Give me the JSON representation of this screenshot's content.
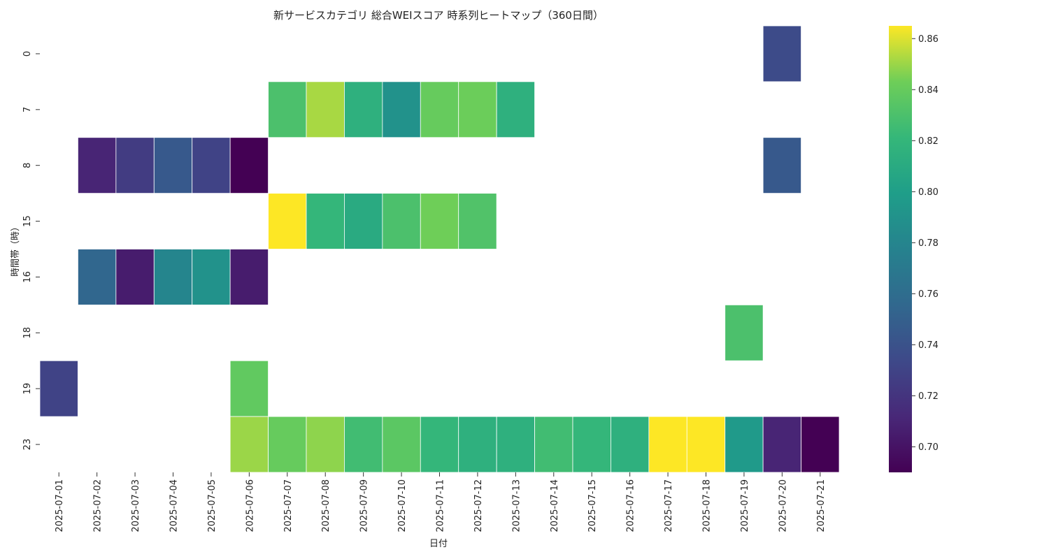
{
  "chart_data": {
    "type": "heatmap",
    "title": "新サービスカテゴリ 総合WEIスコア 時系列ヒートマップ（360日間）",
    "xlabel": "日付",
    "ylabel": "時間帯（時）",
    "x_categories": [
      "2025-07-01",
      "2025-07-02",
      "2025-07-03",
      "2025-07-04",
      "2025-07-05",
      "2025-07-06",
      "2025-07-07",
      "2025-07-08",
      "2025-07-09",
      "2025-07-10",
      "2025-07-11",
      "2025-07-12",
      "2025-07-13",
      "2025-07-14",
      "2025-07-15",
      "2025-07-16",
      "2025-07-17",
      "2025-07-18",
      "2025-07-19",
      "2025-07-20",
      "2025-07-21"
    ],
    "y_categories": [
      "0",
      "7",
      "8",
      "15",
      "16",
      "18",
      "19",
      "23"
    ],
    "values": [
      [
        null,
        null,
        null,
        null,
        null,
        null,
        null,
        null,
        null,
        null,
        null,
        null,
        null,
        null,
        null,
        null,
        null,
        null,
        null,
        0.735,
        null
      ],
      [
        null,
        null,
        null,
        null,
        null,
        null,
        0.83,
        0.852,
        0.815,
        0.79,
        0.84,
        0.842,
        0.815,
        null,
        null,
        null,
        null,
        null,
        null,
        null,
        null
      ],
      [
        null,
        0.71,
        0.725,
        0.745,
        0.73,
        0.69,
        null,
        null,
        null,
        null,
        null,
        null,
        null,
        null,
        null,
        null,
        null,
        null,
        null,
        0.745,
        null
      ],
      [
        null,
        null,
        null,
        null,
        null,
        null,
        0.865,
        0.82,
        0.81,
        0.83,
        0.843,
        0.832,
        null,
        null,
        null,
        null,
        null,
        null,
        null,
        null,
        null
      ],
      [
        null,
        0.755,
        0.705,
        0.78,
        0.79,
        0.705,
        null,
        null,
        null,
        null,
        null,
        null,
        null,
        null,
        null,
        null,
        null,
        null,
        null,
        null,
        null
      ],
      [
        null,
        null,
        null,
        null,
        null,
        null,
        null,
        null,
        null,
        null,
        null,
        null,
        null,
        null,
        null,
        null,
        null,
        null,
        0.83,
        null,
        null
      ],
      [
        0.73,
        null,
        null,
        null,
        null,
        0.838,
        null,
        null,
        null,
        null,
        null,
        null,
        null,
        null,
        null,
        null,
        null,
        null,
        null,
        null,
        null
      ],
      [
        null,
        null,
        null,
        null,
        null,
        0.85,
        0.84,
        0.848,
        0.826,
        0.836,
        0.82,
        0.815,
        0.815,
        0.826,
        0.82,
        0.815,
        0.865,
        0.865,
        0.796,
        0.71,
        0.69
      ]
    ],
    "colorscale": "viridis",
    "colorbar": {
      "vmin": 0.69,
      "vmax": 0.865,
      "ticks": [
        0.7,
        0.72,
        0.74,
        0.76,
        0.78,
        0.8,
        0.82,
        0.84,
        0.86
      ],
      "tick_labels": [
        "0.70",
        "0.72",
        "0.74",
        "0.76",
        "0.78",
        "0.80",
        "0.82",
        "0.84",
        "0.86"
      ]
    }
  }
}
